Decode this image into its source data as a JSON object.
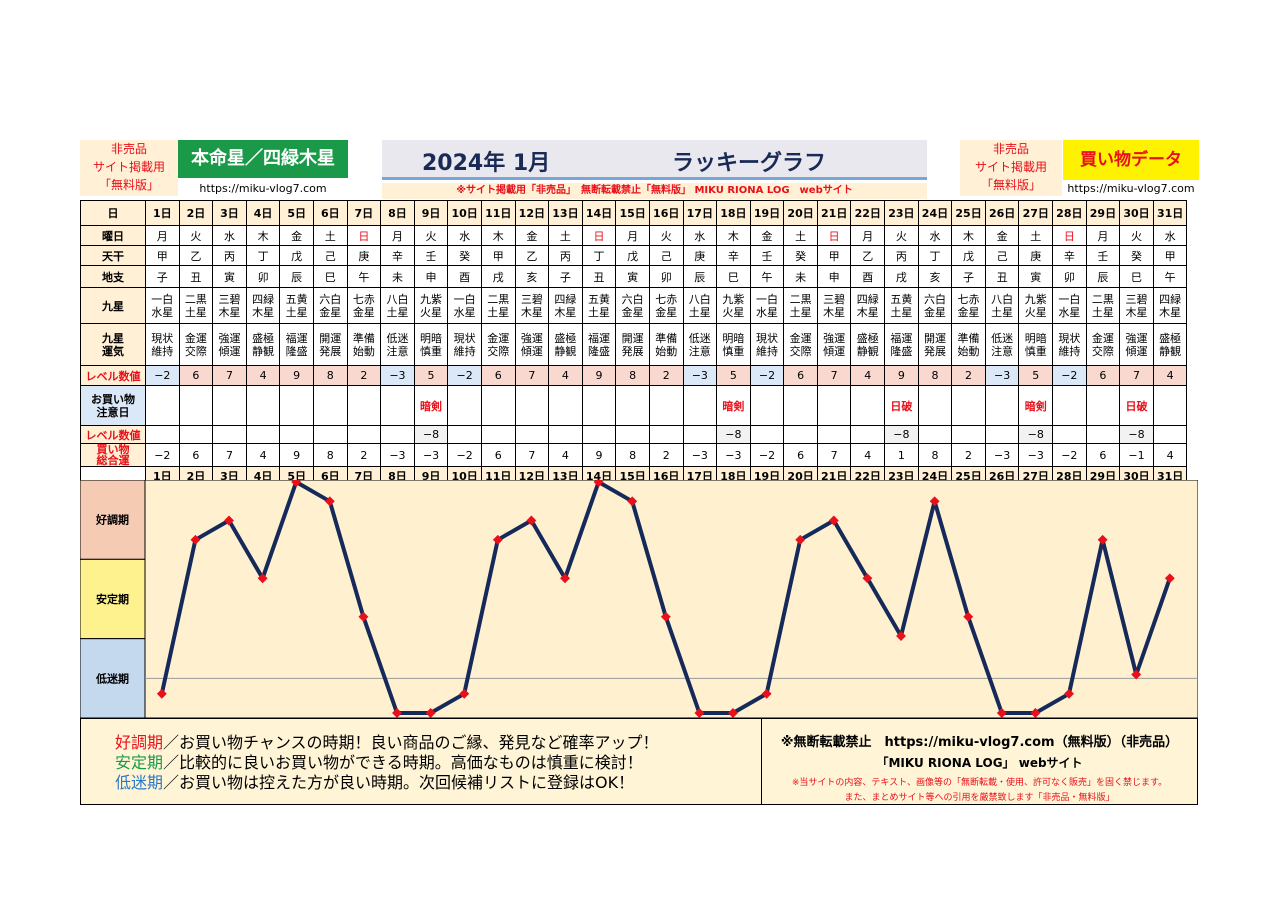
{
  "header": {
    "left_notice": [
      "非売品",
      "サイト掲載用",
      "「無料版」"
    ],
    "main_star": "本命星／四緑木星",
    "url": "https://miku-vlog7.com",
    "year_month": "2024年 1月",
    "graph_title": "ラッキーグラフ",
    "notice_bar": "※サイト掲載用「非売品」　無断転載禁止「無料版」 MIKU RIONA LOG　webサイト",
    "right_notice": [
      "非売品",
      "サイト掲載用",
      "「無料版」"
    ],
    "shopping_data": "買い物データ"
  },
  "row_labels": {
    "day": "日",
    "weekday": "曜日",
    "tenkan": "天干",
    "chishi": "地支",
    "kyusei": [
      "九星"
    ],
    "kyusei_luck": [
      "九星",
      "運気"
    ],
    "level": "レベル数値",
    "caution": [
      "お買い物",
      "注意日"
    ],
    "level2": "レベル数値",
    "total": [
      "買い物",
      "総合運"
    ]
  },
  "days": [
    "1日",
    "2日",
    "3日",
    "4日",
    "5日",
    "6日",
    "7日",
    "8日",
    "9日",
    "10日",
    "11日",
    "12日",
    "13日",
    "14日",
    "15日",
    "16日",
    "17日",
    "18日",
    "19日",
    "20日",
    "21日",
    "22日",
    "23日",
    "24日",
    "25日",
    "26日",
    "27日",
    "28日",
    "29日",
    "30日",
    "31日"
  ],
  "weekdays": [
    "月",
    "火",
    "水",
    "木",
    "金",
    "土",
    "日",
    "月",
    "火",
    "水",
    "木",
    "金",
    "土",
    "日",
    "月",
    "火",
    "水",
    "木",
    "金",
    "土",
    "日",
    "月",
    "火",
    "水",
    "木",
    "金",
    "土",
    "日",
    "月",
    "火",
    "水"
  ],
  "red_weekday_indices": [
    6,
    13,
    20,
    27
  ],
  "tenkan": [
    "甲",
    "乙",
    "丙",
    "丁",
    "戊",
    "己",
    "庚",
    "辛",
    "壬",
    "癸",
    "甲",
    "乙",
    "丙",
    "丁",
    "戊",
    "己",
    "庚",
    "辛",
    "壬",
    "癸",
    "甲",
    "乙",
    "丙",
    "丁",
    "戊",
    "己",
    "庚",
    "辛",
    "壬",
    "癸",
    "甲"
  ],
  "chishi": [
    "子",
    "丑",
    "寅",
    "卯",
    "辰",
    "巳",
    "午",
    "未",
    "申",
    "酉",
    "戌",
    "亥",
    "子",
    "丑",
    "寅",
    "卯",
    "辰",
    "巳",
    "午",
    "未",
    "申",
    "酉",
    "戌",
    "亥",
    "子",
    "丑",
    "寅",
    "卯",
    "辰",
    "巳",
    "午"
  ],
  "kyusei": [
    [
      "一白",
      "水星"
    ],
    [
      "二黒",
      "土星"
    ],
    [
      "三碧",
      "木星"
    ],
    [
      "四緑",
      "木星"
    ],
    [
      "五黄",
      "土星"
    ],
    [
      "六白",
      "金星"
    ],
    [
      "七赤",
      "金星"
    ],
    [
      "八白",
      "土星"
    ],
    [
      "九紫",
      "火星"
    ],
    [
      "一白",
      "水星"
    ],
    [
      "二黒",
      "土星"
    ],
    [
      "三碧",
      "木星"
    ],
    [
      "四緑",
      "木星"
    ],
    [
      "五黄",
      "土星"
    ],
    [
      "六白",
      "金星"
    ],
    [
      "七赤",
      "金星"
    ],
    [
      "八白",
      "土星"
    ],
    [
      "九紫",
      "火星"
    ],
    [
      "一白",
      "水星"
    ],
    [
      "二黒",
      "土星"
    ],
    [
      "三碧",
      "木星"
    ],
    [
      "四緑",
      "木星"
    ],
    [
      "五黄",
      "土星"
    ],
    [
      "六白",
      "金星"
    ],
    [
      "七赤",
      "金星"
    ],
    [
      "八白",
      "土星"
    ],
    [
      "九紫",
      "火星"
    ],
    [
      "一白",
      "水星"
    ],
    [
      "二黒",
      "土星"
    ],
    [
      "三碧",
      "木星"
    ],
    [
      "四緑",
      "木星"
    ]
  ],
  "luck": [
    [
      "現状",
      "維持"
    ],
    [
      "金運",
      "交際"
    ],
    [
      "強運",
      "傾運"
    ],
    [
      "盛極",
      "静観"
    ],
    [
      "福運",
      "隆盛"
    ],
    [
      "開運",
      "発展"
    ],
    [
      "準備",
      "始動"
    ],
    [
      "低迷",
      "注意"
    ],
    [
      "明暗",
      "慎重"
    ],
    [
      "現状",
      "維持"
    ],
    [
      "金運",
      "交際"
    ],
    [
      "強運",
      "傾運"
    ],
    [
      "盛極",
      "静観"
    ],
    [
      "福運",
      "隆盛"
    ],
    [
      "開運",
      "発展"
    ],
    [
      "準備",
      "始動"
    ],
    [
      "低迷",
      "注意"
    ],
    [
      "明暗",
      "慎重"
    ],
    [
      "現状",
      "維持"
    ],
    [
      "金運",
      "交際"
    ],
    [
      "強運",
      "傾運"
    ],
    [
      "盛極",
      "静観"
    ],
    [
      "福運",
      "隆盛"
    ],
    [
      "開運",
      "発展"
    ],
    [
      "準備",
      "始動"
    ],
    [
      "低迷",
      "注意"
    ],
    [
      "明暗",
      "慎重"
    ],
    [
      "現状",
      "維持"
    ],
    [
      "金運",
      "交際"
    ],
    [
      "強運",
      "傾運"
    ],
    [
      "盛極",
      "静観"
    ]
  ],
  "levels": [
    "−2",
    "6",
    "7",
    "4",
    "9",
    "8",
    "2",
    "−3",
    "5",
    "−2",
    "6",
    "7",
    "4",
    "9",
    "8",
    "2",
    "−3",
    "5",
    "−2",
    "6",
    "7",
    "4",
    "9",
    "8",
    "2",
    "−3",
    "5",
    "−2",
    "6",
    "7",
    "4"
  ],
  "level_colors": [
    "blue",
    "pink",
    "pink",
    "pink",
    "pink",
    "pink",
    "pink",
    "blue",
    "pink",
    "blue",
    "pink",
    "pink",
    "pink",
    "pink",
    "pink",
    "pink",
    "blue",
    "pink",
    "blue",
    "pink",
    "pink",
    "pink",
    "pink",
    "pink",
    "pink",
    "blue",
    "pink",
    "blue",
    "pink",
    "pink",
    "pink"
  ],
  "caution": [
    "",
    "",
    "",
    "",
    "",
    "",
    "",
    "",
    "暗剣",
    "",
    "",
    "",
    "",
    "",
    "",
    "",
    "",
    "暗剣",
    "",
    "",
    "",
    "",
    "日破",
    "",
    "",
    "",
    "暗剣",
    "",
    "",
    "日破",
    ""
  ],
  "caution_levels": [
    "",
    "",
    "",
    "",
    "",
    "",
    "",
    "",
    "−8",
    "",
    "",
    "",
    "",
    "",
    "",
    "",
    "",
    "−8",
    "",
    "",
    "",
    "",
    "−8",
    "",
    "",
    "",
    "−8",
    "",
    "",
    "−8",
    ""
  ],
  "totals": [
    "−2",
    "6",
    "7",
    "4",
    "9",
    "8",
    "2",
    "−3",
    "−3",
    "−2",
    "6",
    "7",
    "4",
    "9",
    "8",
    "2",
    "−3",
    "−3",
    "−2",
    "6",
    "7",
    "4",
    "1",
    "8",
    "2",
    "−3",
    "−3",
    "−2",
    "6",
    "−1",
    "4"
  ],
  "chart_data": {
    "type": "line",
    "categories": [
      "1日",
      "2日",
      "3日",
      "4日",
      "5日",
      "6日",
      "7日",
      "8日",
      "9日",
      "10日",
      "11日",
      "12日",
      "13日",
      "14日",
      "15日",
      "16日",
      "17日",
      "18日",
      "19日",
      "20日",
      "21日",
      "22日",
      "23日",
      "24日",
      "25日",
      "26日",
      "27日",
      "28日",
      "29日",
      "30日",
      "31日"
    ],
    "series": [
      {
        "values": [
          -2,
          6,
          7,
          4,
          9,
          8,
          2,
          -3,
          -3,
          -2,
          6,
          7,
          4,
          9,
          8,
          2,
          -3,
          -3,
          -2,
          6,
          7,
          4,
          1,
          8,
          2,
          -3,
          -3,
          -2,
          6,
          -1,
          4
        ]
      }
    ],
    "band_labels": [
      "好調期",
      "安定期",
      "低迷期"
    ],
    "band_colors": [
      "#f6cbb4",
      "#fdf28d",
      "#c5d9ee"
    ],
    "line_color": "#15295a",
    "marker_color": "#e8101a",
    "ylim": [
      -3,
      9
    ]
  },
  "legend": {
    "good_label": "好調期",
    "good_text": "／お買い物チャンスの時期！良い商品のご縁、発見など確率アップ！",
    "stable_label": "安定期",
    "stable_text": "／比較的に良いお買い物ができる時期。高価なものは慎重に検討！",
    "low_label": "低迷期",
    "low_text": "／お買い物は控えた方が良い時期。次回候補リストに登録はOK！",
    "good_color": "#e8101a",
    "stable_color": "#1a9a49",
    "low_color": "#2a7ac8"
  },
  "copyright": {
    "line1": "※無断転載禁止　https://miku-vlog7.com（無料版）（非売品）",
    "line2": "「MIKU RIONA LOG」 webサイト",
    "line3": "※当サイトの内容、テキスト、画像等の「無断転載・使用、許可なく販売」を固く禁じます。",
    "line4": "また、まとめサイト等への引用を厳禁致します「非売品・無料版」"
  }
}
